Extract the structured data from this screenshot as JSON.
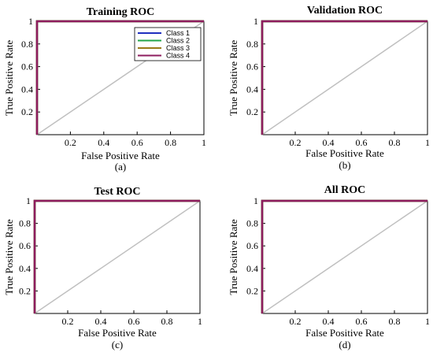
{
  "chart_data": [
    {
      "type": "line",
      "title": "Training ROC",
      "caption": "(a)",
      "xlabel": "False Positive Rate",
      "ylabel": "True Positive Rate",
      "xlim": [
        0,
        1
      ],
      "ylim": [
        0,
        1
      ],
      "xticks": [
        "0.2",
        "0.4",
        "0.6",
        "0.8",
        "1"
      ],
      "yticks": [
        "0.2",
        "0.4",
        "0.6",
        "0.8",
        "1"
      ],
      "grid": false,
      "legend": "top-right",
      "series": [
        {
          "name": "Class 1",
          "color": "#1f2fbf",
          "x": [
            0,
            0,
            1
          ],
          "y": [
            0,
            1,
            1
          ]
        },
        {
          "name": "Class 2",
          "color": "#22a64a",
          "x": [
            0,
            0,
            1
          ],
          "y": [
            0,
            1,
            1
          ]
        },
        {
          "name": "Class 3",
          "color": "#9a7a18",
          "x": [
            0,
            0,
            1
          ],
          "y": [
            0,
            1,
            1
          ]
        },
        {
          "name": "Class 4",
          "color": "#8e1c5e",
          "x": [
            0,
            0,
            1
          ],
          "y": [
            0,
            1,
            1
          ]
        }
      ],
      "diagonal": {
        "color": "#c0c0c0",
        "x": [
          0,
          1
        ],
        "y": [
          0,
          1
        ]
      }
    },
    {
      "type": "line",
      "title": "Validation ROC",
      "caption": "(b)",
      "xlabel": "False Positive Rate",
      "ylabel": "True Positive Rate",
      "xlim": [
        0,
        1
      ],
      "ylim": [
        0,
        1
      ],
      "xticks": [
        "0.2",
        "0.4",
        "0.6",
        "0.8",
        "1"
      ],
      "yticks": [
        "0.2",
        "0.4",
        "0.6",
        "0.8",
        "1"
      ],
      "grid": false,
      "series": [
        {
          "color": "#1f2fbf",
          "x": [
            0,
            0,
            1
          ],
          "y": [
            0,
            1,
            1
          ]
        },
        {
          "color": "#22a64a",
          "x": [
            0,
            0,
            1
          ],
          "y": [
            0,
            1,
            1
          ]
        },
        {
          "color": "#9a7a18",
          "x": [
            0,
            0,
            1
          ],
          "y": [
            0,
            1,
            1
          ]
        },
        {
          "color": "#8e1c5e",
          "x": [
            0,
            0,
            1
          ],
          "y": [
            0,
            1,
            1
          ]
        }
      ],
      "diagonal": {
        "color": "#c0c0c0",
        "x": [
          0,
          1
        ],
        "y": [
          0,
          1
        ]
      }
    },
    {
      "type": "line",
      "title": "Test ROC",
      "caption": "(c)",
      "xlabel": "False Positive Rate",
      "ylabel": "True Positive Rate",
      "xlim": [
        0,
        1
      ],
      "ylim": [
        0,
        1
      ],
      "xticks": [
        "0.2",
        "0.4",
        "0.6",
        "0.8",
        "1"
      ],
      "yticks": [
        "0.2",
        "0.4",
        "0.6",
        "0.8",
        "1"
      ],
      "grid": false,
      "series": [
        {
          "color": "#1f2fbf",
          "x": [
            0,
            0,
            1
          ],
          "y": [
            0,
            1,
            1
          ]
        },
        {
          "color": "#22a64a",
          "x": [
            0,
            0,
            1
          ],
          "y": [
            0,
            1,
            1
          ]
        },
        {
          "color": "#9a7a18",
          "x": [
            0,
            0,
            1
          ],
          "y": [
            0,
            1,
            1
          ]
        },
        {
          "color": "#8e1c5e",
          "x": [
            0,
            0,
            1
          ],
          "y": [
            0,
            1,
            1
          ]
        }
      ],
      "diagonal": {
        "color": "#c0c0c0",
        "x": [
          0,
          1
        ],
        "y": [
          0,
          1
        ]
      }
    },
    {
      "type": "line",
      "title": "All ROC",
      "caption": "(d)",
      "xlabel": "False Positive Rate",
      "ylabel": "True Positive Rate",
      "xlim": [
        0,
        1
      ],
      "ylim": [
        0,
        1
      ],
      "xticks": [
        "0.2",
        "0.4",
        "0.6",
        "0.8",
        "1"
      ],
      "yticks": [
        "0.2",
        "0.4",
        "0.6",
        "0.8",
        "1"
      ],
      "grid": false,
      "series": [
        {
          "color": "#1f2fbf",
          "x": [
            0,
            0,
            1
          ],
          "y": [
            0,
            1,
            1
          ]
        },
        {
          "color": "#22a64a",
          "x": [
            0,
            0,
            1
          ],
          "y": [
            0,
            1,
            1
          ]
        },
        {
          "color": "#9a7a18",
          "x": [
            0,
            0,
            1
          ],
          "y": [
            0,
            1,
            1
          ]
        },
        {
          "color": "#8e1c5e",
          "x": [
            0,
            0,
            1
          ],
          "y": [
            0,
            1,
            1
          ]
        }
      ],
      "diagonal": {
        "color": "#c0c0c0",
        "x": [
          0,
          1
        ],
        "y": [
          0,
          1
        ]
      }
    }
  ]
}
